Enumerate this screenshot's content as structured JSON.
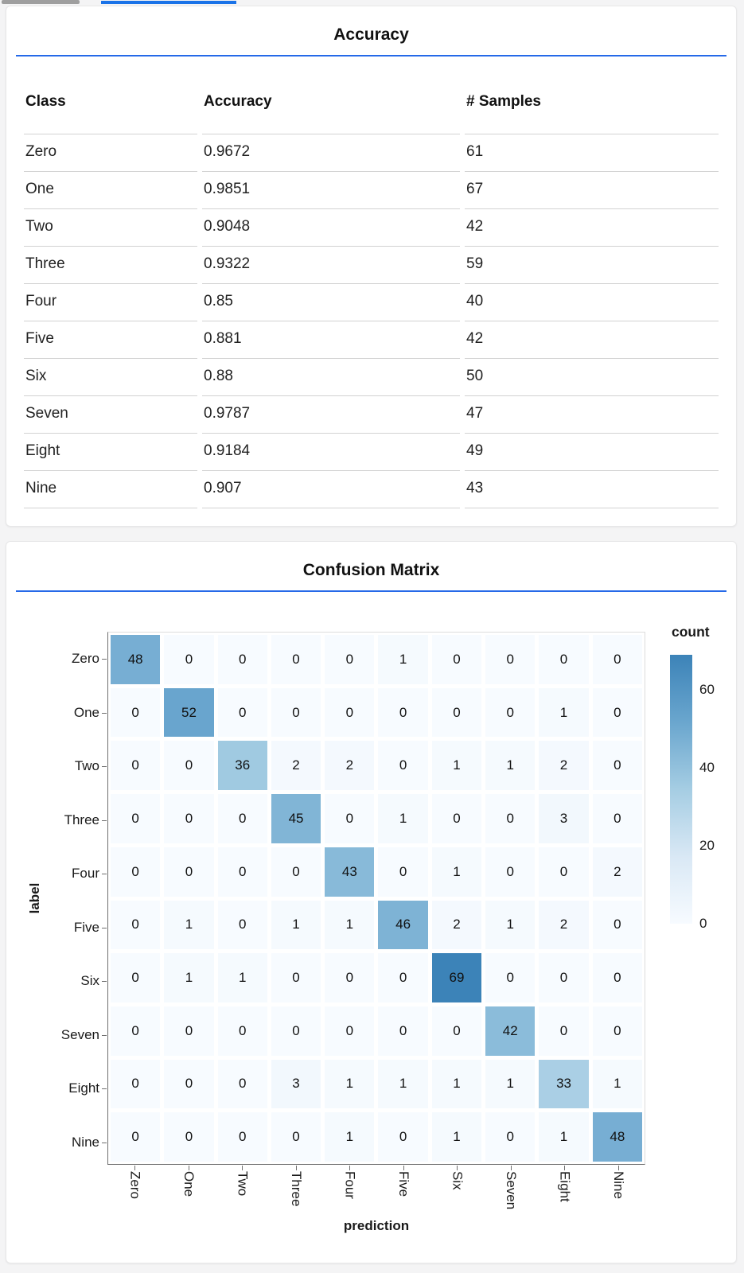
{
  "tabs": {
    "inactive_indicator_color": "#9f9f9f",
    "active_indicator_color": "#1a73e8"
  },
  "divider_color": "#2569e8",
  "accuracy_card": {
    "title": "Accuracy"
  },
  "confusion_card": {
    "title": "Confusion Matrix"
  },
  "chart_data": [
    {
      "type": "table",
      "title": "Accuracy",
      "columns": [
        "Class",
        "Accuracy",
        "# Samples"
      ],
      "rows": [
        [
          "Zero",
          "0.9672",
          "61"
        ],
        [
          "One",
          "0.9851",
          "67"
        ],
        [
          "Two",
          "0.9048",
          "42"
        ],
        [
          "Three",
          "0.9322",
          "59"
        ],
        [
          "Four",
          "0.85",
          "40"
        ],
        [
          "Five",
          "0.881",
          "42"
        ],
        [
          "Six",
          "0.88",
          "50"
        ],
        [
          "Seven",
          "0.9787",
          "47"
        ],
        [
          "Eight",
          "0.9184",
          "49"
        ],
        [
          "Nine",
          "0.907",
          "43"
        ]
      ]
    },
    {
      "type": "heatmap",
      "title": "Confusion Matrix",
      "xlabel": "prediction",
      "ylabel": "label",
      "x_categories": [
        "Zero",
        "One",
        "Two",
        "Three",
        "Four",
        "Five",
        "Six",
        "Seven",
        "Eight",
        "Nine"
      ],
      "y_categories": [
        "Zero",
        "One",
        "Two",
        "Three",
        "Four",
        "Five",
        "Six",
        "Seven",
        "Eight",
        "Nine"
      ],
      "values": [
        [
          48,
          0,
          0,
          0,
          0,
          1,
          0,
          0,
          0,
          0
        ],
        [
          0,
          52,
          0,
          0,
          0,
          0,
          0,
          0,
          1,
          0
        ],
        [
          0,
          0,
          36,
          2,
          2,
          0,
          1,
          1,
          2,
          0
        ],
        [
          0,
          0,
          0,
          45,
          0,
          1,
          0,
          0,
          3,
          0
        ],
        [
          0,
          0,
          0,
          0,
          43,
          0,
          1,
          0,
          0,
          2
        ],
        [
          0,
          1,
          0,
          1,
          1,
          46,
          2,
          1,
          2,
          0
        ],
        [
          0,
          1,
          1,
          0,
          0,
          0,
          69,
          0,
          0,
          0
        ],
        [
          0,
          0,
          0,
          0,
          0,
          0,
          0,
          42,
          0,
          0
        ],
        [
          0,
          0,
          0,
          3,
          1,
          1,
          1,
          1,
          33,
          1
        ],
        [
          0,
          0,
          0,
          0,
          1,
          0,
          1,
          0,
          1,
          48
        ]
      ],
      "legend": {
        "title": "count",
        "ticks": [
          0,
          20,
          40,
          60
        ],
        "domain": [
          0,
          69
        ]
      },
      "colormap": [
        [
          "0",
          "#f7fbff"
        ],
        [
          "0.25",
          "#d9e8f5"
        ],
        [
          "0.5",
          "#a5cde3"
        ],
        [
          "0.75",
          "#6aa6ce"
        ],
        [
          "1",
          "#3c83b8"
        ]
      ]
    }
  ]
}
